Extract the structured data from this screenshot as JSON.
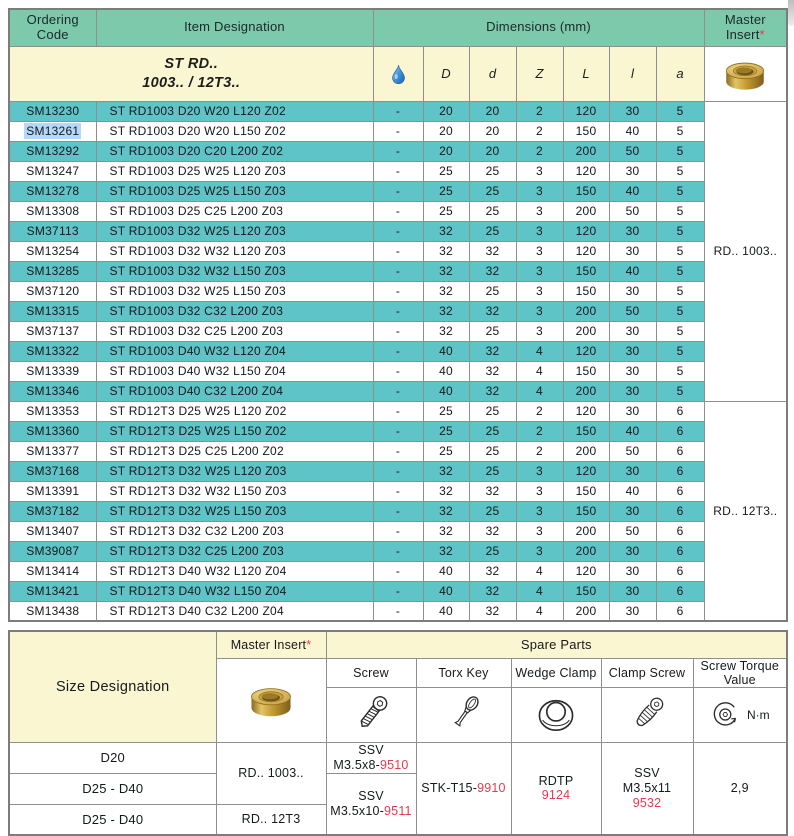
{
  "colors": {
    "header_teal": "#7cc9ac",
    "row_teal": "#5fc4c8",
    "pale_yellow": "#fbf6d2",
    "part_red": "#e83a4e",
    "selection_blue": "#b5d7f8",
    "border_gray": "#8f8f8f",
    "text_dark": "#16191c"
  },
  "top_table": {
    "headers": {
      "ordering_code": "Ordering Code",
      "item_designation": "Item Designation",
      "dimensions": "Dimensions (mm)",
      "master_insert": "Master Insert",
      "master_insert_note": "*"
    },
    "subheader": {
      "designation_line1": "ST RD..",
      "designation_line2": "1003.. / 12T3..",
      "coolant_icon": "coolant-droplet-icon",
      "dim_cols": [
        "D",
        "d",
        "Z",
        "L",
        "l",
        "a"
      ]
    },
    "highlighted_code": "SM13261",
    "master_insert_groups": [
      {
        "label": "RD.. 1003..",
        "rows": 15
      },
      {
        "label": "RD.. 12T3..",
        "rows": 11
      }
    ],
    "rows": [
      {
        "code": "SM13230",
        "designation": "ST RD1003 D20 W20 L120 Z02",
        "dims": [
          "-",
          "20",
          "20",
          "2",
          "120",
          "30",
          "5"
        ]
      },
      {
        "code": "SM13261",
        "designation": "ST RD1003 D20 W20 L150 Z02",
        "dims": [
          "-",
          "20",
          "20",
          "2",
          "150",
          "40",
          "5"
        ]
      },
      {
        "code": "SM13292",
        "designation": "ST RD1003 D20 C20 L200 Z02",
        "dims": [
          "-",
          "20",
          "20",
          "2",
          "200",
          "50",
          "5"
        ]
      },
      {
        "code": "SM13247",
        "designation": "ST RD1003 D25 W25 L120 Z03",
        "dims": [
          "-",
          "25",
          "25",
          "3",
          "120",
          "30",
          "5"
        ]
      },
      {
        "code": "SM13278",
        "designation": "ST RD1003 D25 W25 L150 Z03",
        "dims": [
          "-",
          "25",
          "25",
          "3",
          "150",
          "40",
          "5"
        ]
      },
      {
        "code": "SM13308",
        "designation": "ST RD1003 D25 C25 L200 Z03",
        "dims": [
          "-",
          "25",
          "25",
          "3",
          "200",
          "50",
          "5"
        ]
      },
      {
        "code": "SM37113",
        "designation": "ST RD1003 D32 W25 L120 Z03",
        "dims": [
          "-",
          "32",
          "25",
          "3",
          "120",
          "30",
          "5"
        ]
      },
      {
        "code": "SM13254",
        "designation": "ST RD1003 D32 W32 L120 Z03",
        "dims": [
          "-",
          "32",
          "32",
          "3",
          "120",
          "30",
          "5"
        ]
      },
      {
        "code": "SM13285",
        "designation": "ST RD1003 D32 W32 L150 Z03",
        "dims": [
          "-",
          "32",
          "32",
          "3",
          "150",
          "40",
          "5"
        ]
      },
      {
        "code": "SM37120",
        "designation": "ST RD1003 D32 W25 L150 Z03",
        "dims": [
          "-",
          "32",
          "25",
          "3",
          "150",
          "30",
          "5"
        ]
      },
      {
        "code": "SM13315",
        "designation": "ST RD1003 D32 C32 L200 Z03",
        "dims": [
          "-",
          "32",
          "32",
          "3",
          "200",
          "50",
          "5"
        ]
      },
      {
        "code": "SM37137",
        "designation": "ST RD1003 D32 C25 L200 Z03",
        "dims": [
          "-",
          "32",
          "25",
          "3",
          "200",
          "30",
          "5"
        ]
      },
      {
        "code": "SM13322",
        "designation": "ST RD1003 D40 W32 L120 Z04",
        "dims": [
          "-",
          "40",
          "32",
          "4",
          "120",
          "30",
          "5"
        ]
      },
      {
        "code": "SM13339",
        "designation": "ST RD1003 D40 W32 L150 Z04",
        "dims": [
          "-",
          "40",
          "32",
          "4",
          "150",
          "30",
          "5"
        ]
      },
      {
        "code": "SM13346",
        "designation": "ST RD1003 D40 C32 L200 Z04",
        "dims": [
          "-",
          "40",
          "32",
          "4",
          "200",
          "30",
          "5"
        ]
      },
      {
        "code": "SM13353",
        "designation": "ST RD12T3 D25 W25 L120 Z02",
        "dims": [
          "-",
          "25",
          "25",
          "2",
          "120",
          "30",
          "6"
        ]
      },
      {
        "code": "SM13360",
        "designation": "ST RD12T3 D25 W25 L150 Z02",
        "dims": [
          "-",
          "25",
          "25",
          "2",
          "150",
          "40",
          "6"
        ]
      },
      {
        "code": "SM13377",
        "designation": "ST RD12T3 D25 C25 L200 Z02",
        "dims": [
          "-",
          "25",
          "25",
          "2",
          "200",
          "50",
          "6"
        ]
      },
      {
        "code": "SM37168",
        "designation": "ST RD12T3 D32 W25 L120 Z03",
        "dims": [
          "-",
          "32",
          "25",
          "3",
          "120",
          "30",
          "6"
        ]
      },
      {
        "code": "SM13391",
        "designation": "ST RD12T3 D32 W32 L150 Z03",
        "dims": [
          "-",
          "32",
          "32",
          "3",
          "150",
          "40",
          "6"
        ]
      },
      {
        "code": "SM37182",
        "designation": "ST RD12T3 D32 W25 L150 Z03",
        "dims": [
          "-",
          "32",
          "25",
          "3",
          "150",
          "30",
          "6"
        ]
      },
      {
        "code": "SM13407",
        "designation": "ST RD12T3 D32 C32 L200 Z03",
        "dims": [
          "-",
          "32",
          "32",
          "3",
          "200",
          "50",
          "6"
        ]
      },
      {
        "code": "SM39087",
        "designation": "ST RD12T3 D32 C25 L200 Z03",
        "dims": [
          "-",
          "32",
          "25",
          "3",
          "200",
          "30",
          "6"
        ]
      },
      {
        "code": "SM13414",
        "designation": "ST RD12T3 D40 W32 L120 Z04",
        "dims": [
          "-",
          "40",
          "32",
          "4",
          "120",
          "30",
          "6"
        ]
      },
      {
        "code": "SM13421",
        "designation": "ST RD12T3 D40 W32 L150 Z04",
        "dims": [
          "-",
          "40",
          "32",
          "4",
          "150",
          "30",
          "6"
        ]
      },
      {
        "code": "SM13438",
        "designation": "ST RD12T3 D40 C32 L200 Z04",
        "dims": [
          "-",
          "40",
          "32",
          "4",
          "200",
          "30",
          "6"
        ]
      }
    ]
  },
  "bottom_table": {
    "size_designation_header": "Size Designation",
    "master_insert_header": "Master Insert",
    "master_insert_note": "*",
    "spare_parts_header": "Spare Parts",
    "part_columns": [
      "Screw",
      "Torx Key",
      "Wedge Clamp",
      "Clamp Screw",
      "Screw Torque Value"
    ],
    "torque_unit": "N·m",
    "size_rows": [
      "D20",
      "D25 - D40",
      "D25 - D40"
    ],
    "master_insert_values": [
      "RD.. 1003..",
      "RD.. 12T3"
    ],
    "screw_values": [
      {
        "line1": "SSV",
        "line2": "M3.5x8-",
        "part_no": "9510"
      },
      {
        "line1": "SSV",
        "line2": "M3.5x10-",
        "part_no": "9511"
      }
    ],
    "torx_key_value": {
      "text": "STK-T15-",
      "part_no": "9910"
    },
    "wedge_clamp_value": {
      "text": "RDTP",
      "part_no": "9124"
    },
    "clamp_screw_value": {
      "line1": "SSV",
      "line2": "M3.5x11",
      "part_no": "9532"
    },
    "torque_value": "2,9"
  }
}
